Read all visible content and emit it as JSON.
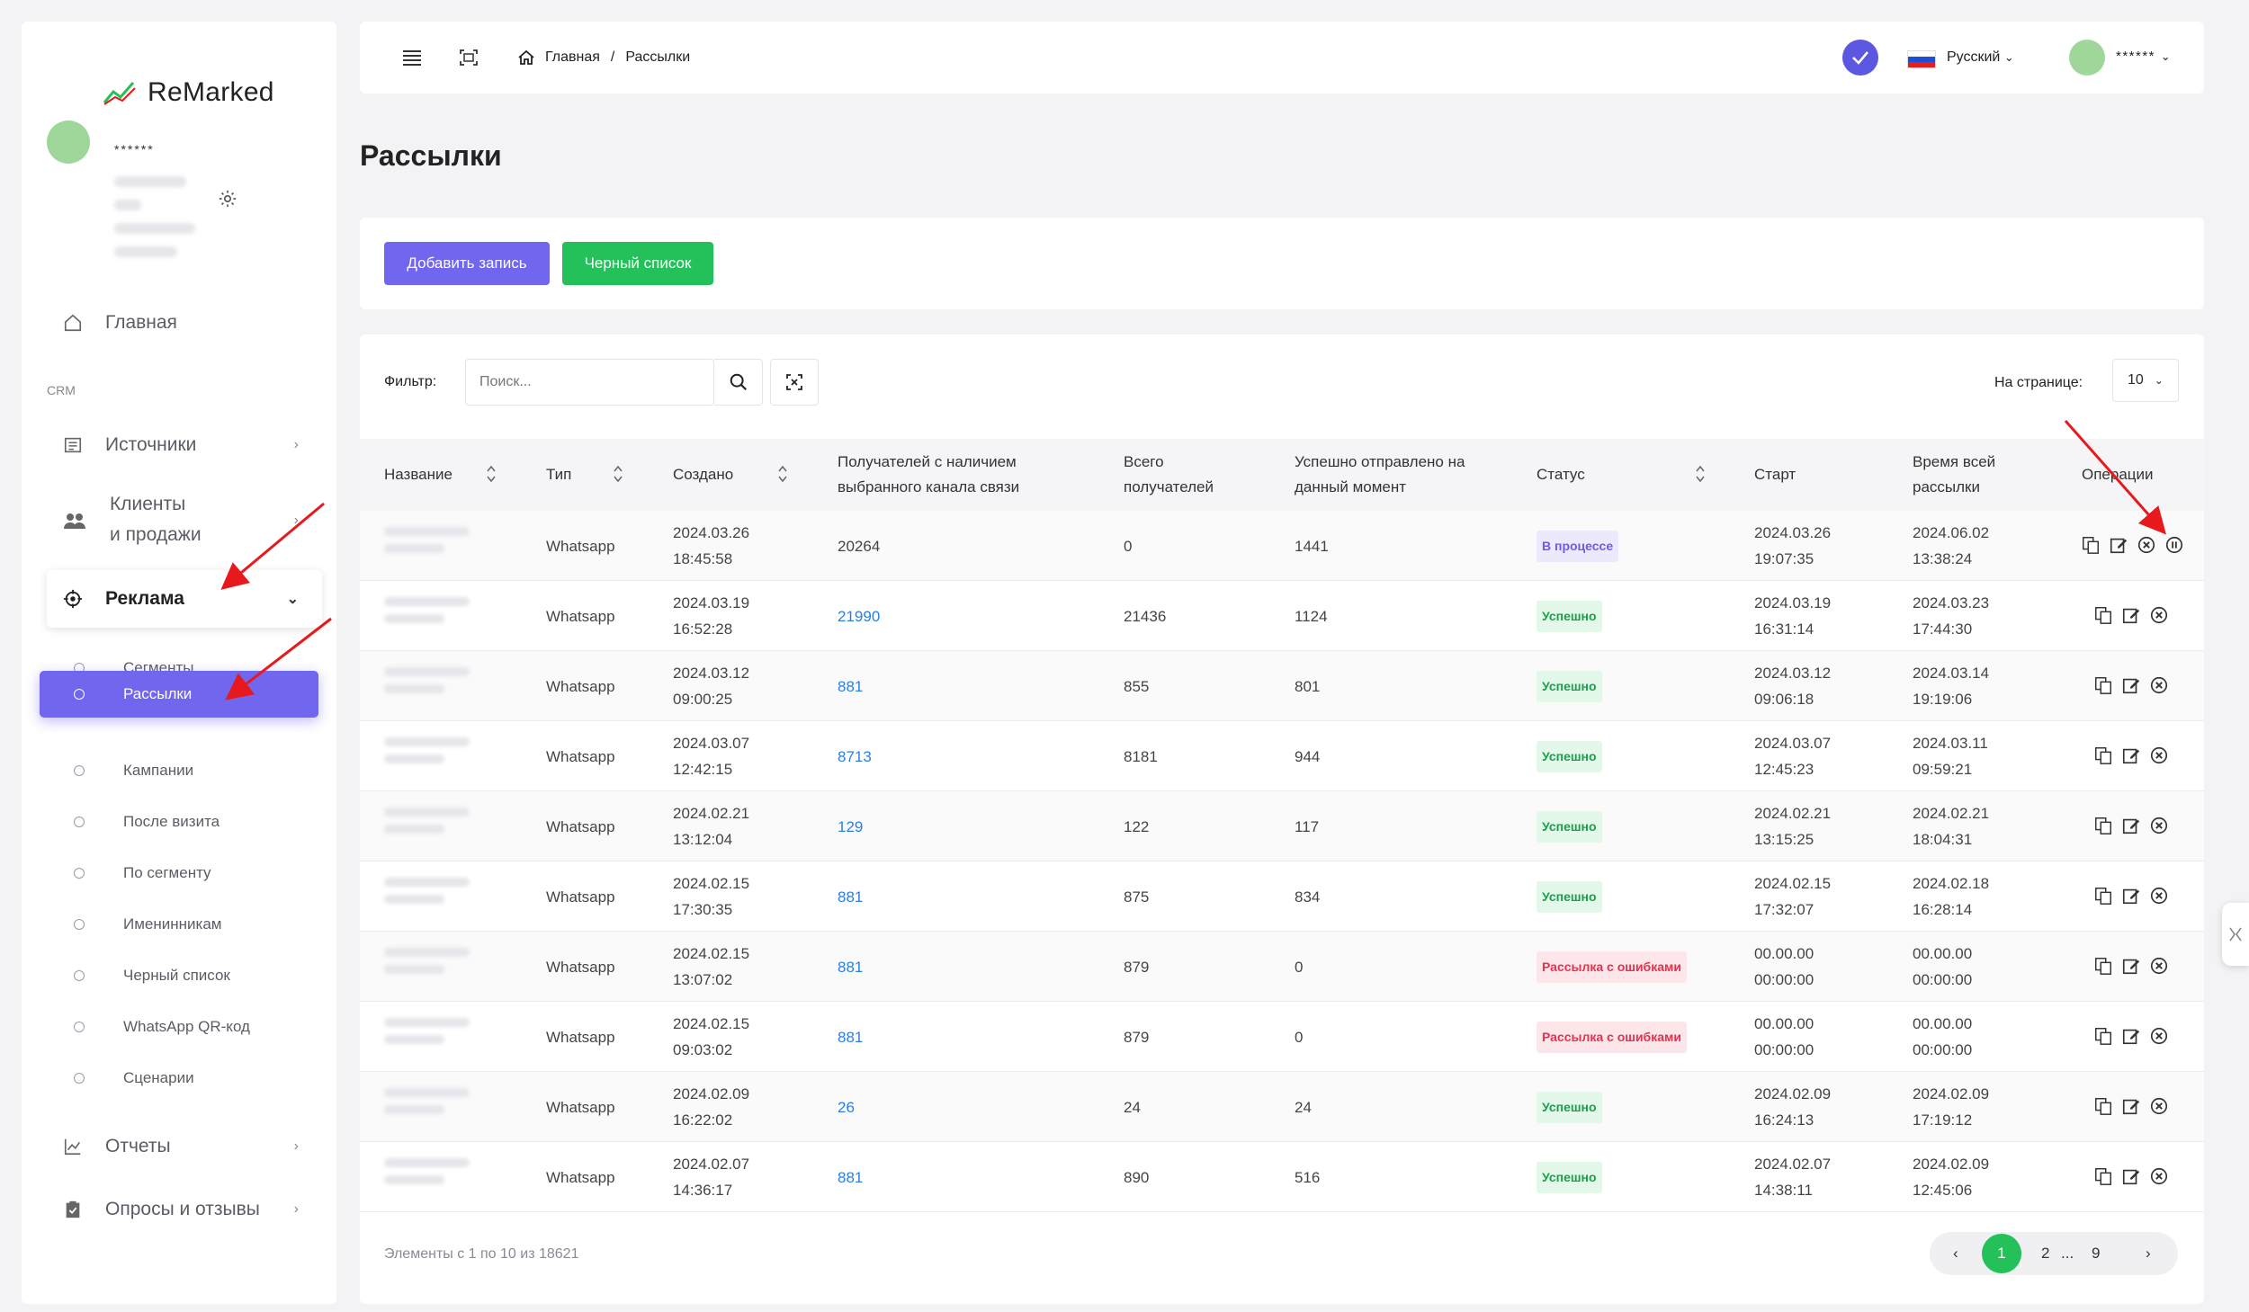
{
  "app": {
    "brand": "ReMarked"
  },
  "user": {
    "name": "******"
  },
  "sidebar": {
    "home": "Главная",
    "section_crm": "CRM",
    "sources": "Источники",
    "clients_line1": "Клиенты",
    "clients_line2": "и продажи",
    "ads": "Реклама",
    "sub": [
      "Сегменты",
      "Рассылки",
      "Кампании",
      "После визита",
      "По сегменту",
      "Именинникам",
      "Черный список",
      "WhatsApp QR-код",
      "Сценарии"
    ],
    "reports": "Отчеты",
    "surveys": "Опросы и отзывы"
  },
  "topbar": {
    "breadcrumb_home": "Главная",
    "breadcrumb_sep": "/",
    "breadcrumb_current": "Рассылки",
    "language": "Русский",
    "user": "******"
  },
  "page": {
    "title": "Рассылки"
  },
  "actions": {
    "add": "Добавить запись",
    "blacklist": "Черный список"
  },
  "filter": {
    "label": "Фильтр:",
    "placeholder": "Поиск...",
    "perpage_label": "На странице:",
    "perpage_value": "10"
  },
  "table": {
    "headers": {
      "name": "Название",
      "type": "Тип",
      "created": "Создано",
      "recipients_l1": "Получателей с наличием",
      "recipients_l2": "выбранного канала связи",
      "total_l1": "Всего",
      "total_l2": "получателей",
      "sent_l1": "Успешно отправлено на",
      "sent_l2": "данный момент",
      "status": "Статус",
      "start": "Старт",
      "duration_l1": "Время всей",
      "duration_l2": "рассылки",
      "ops": "Операции"
    },
    "rows": [
      {
        "type": "Whatsapp",
        "created_d": "2024.03.26",
        "created_t": "18:45:58",
        "recipients": "20264",
        "total": "0",
        "sent": "1441",
        "status": "В процессе",
        "status_kind": "proc",
        "start_d": "2024.03.26",
        "start_t": "19:07:35",
        "end_d": "2024.06.02",
        "end_t": "13:38:24"
      },
      {
        "type": "Whatsapp",
        "created_d": "2024.03.19",
        "created_t": "16:52:28",
        "recipients": "21990",
        "total": "21436",
        "sent": "1124",
        "status": "Успешно",
        "status_kind": "ok",
        "start_d": "2024.03.19",
        "start_t": "16:31:14",
        "end_d": "2024.03.23",
        "end_t": "17:44:30"
      },
      {
        "type": "Whatsapp",
        "created_d": "2024.03.12",
        "created_t": "09:00:25",
        "recipients": "881",
        "total": "855",
        "sent": "801",
        "status": "Успешно",
        "status_kind": "ok",
        "start_d": "2024.03.12",
        "start_t": "09:06:18",
        "end_d": "2024.03.14",
        "end_t": "19:19:06"
      },
      {
        "type": "Whatsapp",
        "created_d": "2024.03.07",
        "created_t": "12:42:15",
        "recipients": "8713",
        "total": "8181",
        "sent": "944",
        "status": "Успешно",
        "status_kind": "ok",
        "start_d": "2024.03.07",
        "start_t": "12:45:23",
        "end_d": "2024.03.11",
        "end_t": "09:59:21"
      },
      {
        "type": "Whatsapp",
        "created_d": "2024.02.21",
        "created_t": "13:12:04",
        "recipients": "129",
        "total": "122",
        "sent": "117",
        "status": "Успешно",
        "status_kind": "ok",
        "start_d": "2024.02.21",
        "start_t": "13:15:25",
        "end_d": "2024.02.21",
        "end_t": "18:04:31"
      },
      {
        "type": "Whatsapp",
        "created_d": "2024.02.15",
        "created_t": "17:30:35",
        "recipients": "881",
        "total": "875",
        "sent": "834",
        "status": "Успешно",
        "status_kind": "ok",
        "start_d": "2024.02.15",
        "start_t": "17:32:07",
        "end_d": "2024.02.18",
        "end_t": "16:28:14"
      },
      {
        "type": "Whatsapp",
        "created_d": "2024.02.15",
        "created_t": "13:07:02",
        "recipients": "881",
        "total": "879",
        "sent": "0",
        "status": "Рассылка с ошибками",
        "status_kind": "err",
        "start_d": "00.00.00",
        "start_t": "00:00:00",
        "end_d": "00.00.00",
        "end_t": "00:00:00"
      },
      {
        "type": "Whatsapp",
        "created_d": "2024.02.15",
        "created_t": "09:03:02",
        "recipients": "881",
        "total": "879",
        "sent": "0",
        "status": "Рассылка с ошибками",
        "status_kind": "err",
        "start_d": "00.00.00",
        "start_t": "00:00:00",
        "end_d": "00.00.00",
        "end_t": "00:00:00"
      },
      {
        "type": "Whatsapp",
        "created_d": "2024.02.09",
        "created_t": "16:22:02",
        "recipients": "26",
        "total": "24",
        "sent": "24",
        "status": "Успешно",
        "status_kind": "ok",
        "start_d": "2024.02.09",
        "start_t": "16:24:13",
        "end_d": "2024.02.09",
        "end_t": "17:19:12"
      },
      {
        "type": "Whatsapp",
        "created_d": "2024.02.07",
        "created_t": "14:36:17",
        "recipients": "881",
        "total": "890",
        "sent": "516",
        "status": "Успешно",
        "status_kind": "ok",
        "start_d": "2024.02.07",
        "start_t": "14:38:11",
        "end_d": "2024.02.09",
        "end_t": "12:45:06"
      }
    ]
  },
  "footer": {
    "summary": "Элементы с 1 по 10 из 18621"
  },
  "pagination": {
    "prev": "‹",
    "current": "1",
    "p2": "2",
    "dots": "...",
    "last": "9",
    "next": "›"
  },
  "colors": {
    "accent": "#7166ee",
    "green": "#24c05a",
    "annotation": "#e8191c"
  },
  "icons": [
    "menu-icon",
    "fullscreen-icon",
    "home-icon",
    "check-icon",
    "search-icon",
    "scan-icon",
    "copy-icon",
    "edit-icon",
    "cancel-icon",
    "pause-icon",
    "gear-icon",
    "chart-icon"
  ]
}
